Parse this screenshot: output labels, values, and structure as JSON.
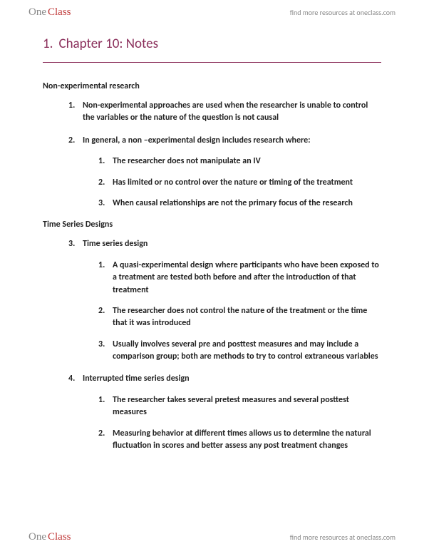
{
  "brand": {
    "one": "One",
    "class": "Class"
  },
  "tagline": "find more resources at oneclass.com",
  "title": {
    "num": "1.",
    "text": "Chapter 10: Notes"
  },
  "sections": {
    "nonexp": {
      "heading": "Non-experimental research",
      "items": [
        {
          "text": "Non-experimental approaches are used when the researcher is unable to control the variables or the nature of the question is not causal"
        },
        {
          "text": "In general, a non –experimental design includes research where:",
          "sub": [
            "The researcher does not manipulate an IV",
            "Has limited or no control over the nature or timing of the treatment",
            "When causal relationships are not the primary focus of the research"
          ]
        }
      ]
    },
    "ts": {
      "heading": "Time Series Designs",
      "items": [
        {
          "text": "Time series design",
          "sub": [
            "A quasi-experimental design where participants who have been exposed to a treatment are tested both before and after the introduction of that treatment",
            "The researcher does not control the nature of the treatment or the time that it was introduced",
            "Usually involves several pre and posttest measures and may include a comparison group; both are methods to try to control extraneous variables"
          ]
        },
        {
          "text": "Interrupted time series design",
          "sub": [
            "The researcher takes several pretest measures and several posttest measures",
            "Measuring behavior at different times allows us to determine the natural fluctuation in scores and better assess any post treatment changes"
          ]
        }
      ]
    }
  }
}
